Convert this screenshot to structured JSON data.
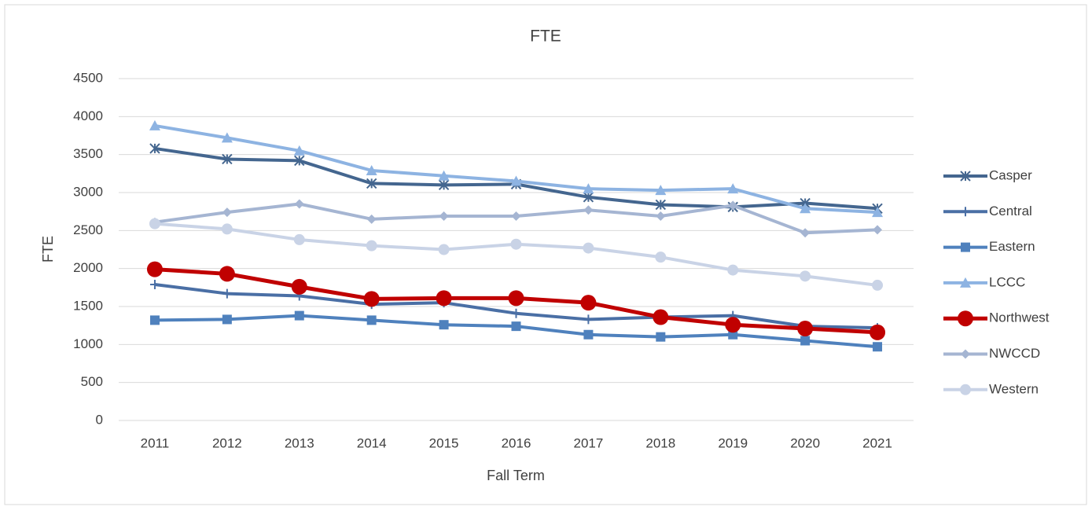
{
  "chart_data": {
    "type": "line",
    "title": "FTE",
    "x_label": "Fall Term",
    "y_label": "FTE",
    "categories": [
      "2011",
      "2012",
      "2013",
      "2014",
      "2015",
      "2016",
      "2017",
      "2018",
      "2019",
      "2020",
      "2021"
    ],
    "ylim": [
      0,
      4500
    ],
    "yticks": [
      0,
      500,
      1000,
      1500,
      2000,
      2500,
      3000,
      3500,
      4000,
      4500
    ],
    "grid": true,
    "legend": "right",
    "series": [
      {
        "name": "Casper",
        "color": "#44668f",
        "marker": "star",
        "values": [
          3580,
          3440,
          3420,
          3120,
          3100,
          3110,
          2940,
          2840,
          2810,
          2860,
          2790
        ]
      },
      {
        "name": "Central",
        "color": "#4a6fa5",
        "marker": "plus",
        "values": [
          1790,
          1670,
          1640,
          1530,
          1550,
          1410,
          1330,
          1360,
          1380,
          1240,
          1220
        ]
      },
      {
        "name": "Eastern",
        "color": "#4f81bd",
        "marker": "square",
        "values": [
          1320,
          1330,
          1380,
          1320,
          1260,
          1240,
          1130,
          1100,
          1130,
          1050,
          970
        ]
      },
      {
        "name": "LCCC",
        "color": "#8db3e2",
        "marker": "triangle",
        "values": [
          3880,
          3720,
          3550,
          3290,
          3220,
          3150,
          3050,
          3030,
          3050,
          2790,
          2740
        ]
      },
      {
        "name": "Northwest",
        "color": "#c00000",
        "marker": "bigcircle",
        "values": [
          1990,
          1930,
          1760,
          1600,
          1610,
          1610,
          1550,
          1360,
          1260,
          1210,
          1160
        ]
      },
      {
        "name": "NWCCD",
        "color": "#a5b5d2",
        "marker": "diamond",
        "values": [
          2610,
          2740,
          2850,
          2650,
          2690,
          2690,
          2770,
          2690,
          2830,
          2470,
          2510
        ]
      },
      {
        "name": "Western",
        "color": "#c9d3e6",
        "marker": "circle",
        "values": [
          2590,
          2520,
          2380,
          2300,
          2250,
          2320,
          2270,
          2150,
          1980,
          1900,
          1780
        ]
      }
    ]
  }
}
